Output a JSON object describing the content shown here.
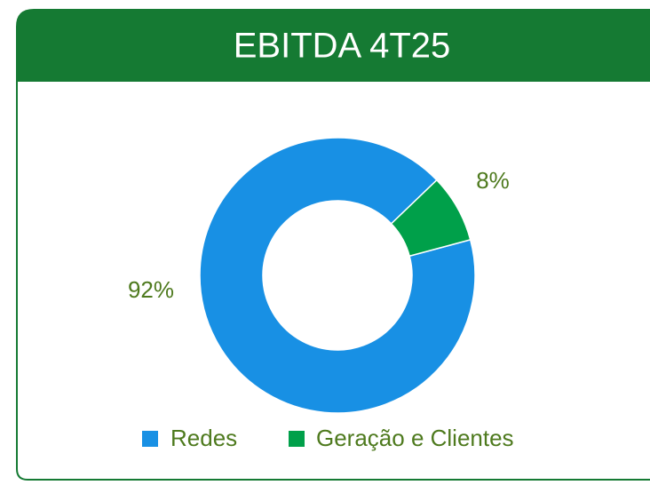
{
  "chart_data": {
    "type": "donut",
    "title": "EBITDA 4T25",
    "categories": [
      "Redes",
      "Geração e Clientes"
    ],
    "values": [
      92,
      8
    ],
    "value_labels": [
      "92%",
      "8%"
    ],
    "colors": [
      "#1890e4",
      "#00a04a"
    ],
    "legend": "bottom"
  }
}
